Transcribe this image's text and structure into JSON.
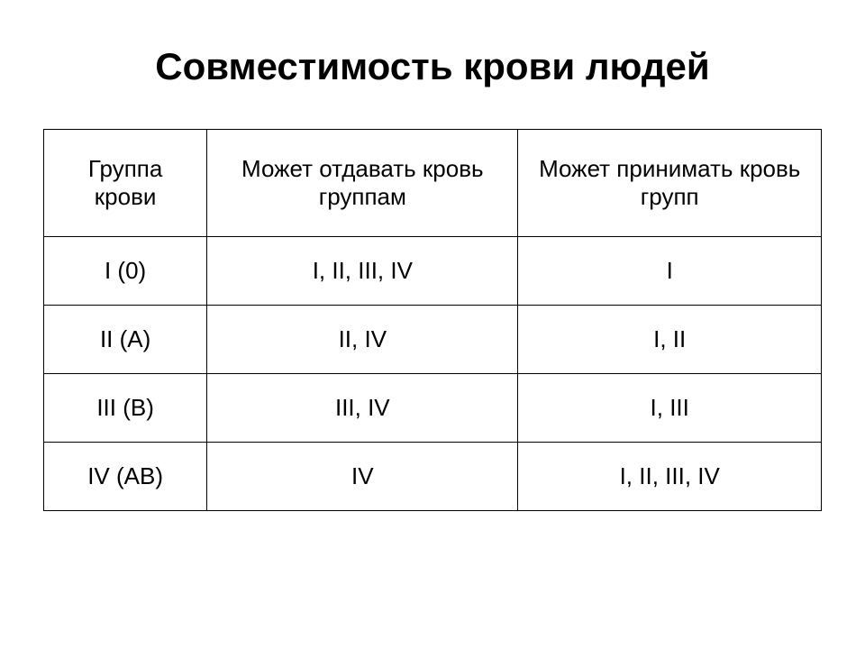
{
  "title": "Совместимость крови людей",
  "table": {
    "columns": [
      {
        "label": "Группа крови",
        "widthClass": "col1"
      },
      {
        "label": "Может отдавать кровь группам",
        "widthClass": "col2"
      },
      {
        "label": "Может принимать кровь групп",
        "widthClass": "col3"
      }
    ],
    "rows": [
      [
        "I (0)",
        "I, II, III, IV",
        "I"
      ],
      [
        "II (A)",
        "II, IV",
        "I, II"
      ],
      [
        "III (B)",
        "III, IV",
        "I, III"
      ],
      [
        "IV (AB)",
        "IV",
        "I, II, III, IV"
      ]
    ],
    "border_color": "#000000",
    "background_color": "#ffffff",
    "header_fontsize": 26,
    "cell_fontsize": 26,
    "title_fontsize": 42
  }
}
